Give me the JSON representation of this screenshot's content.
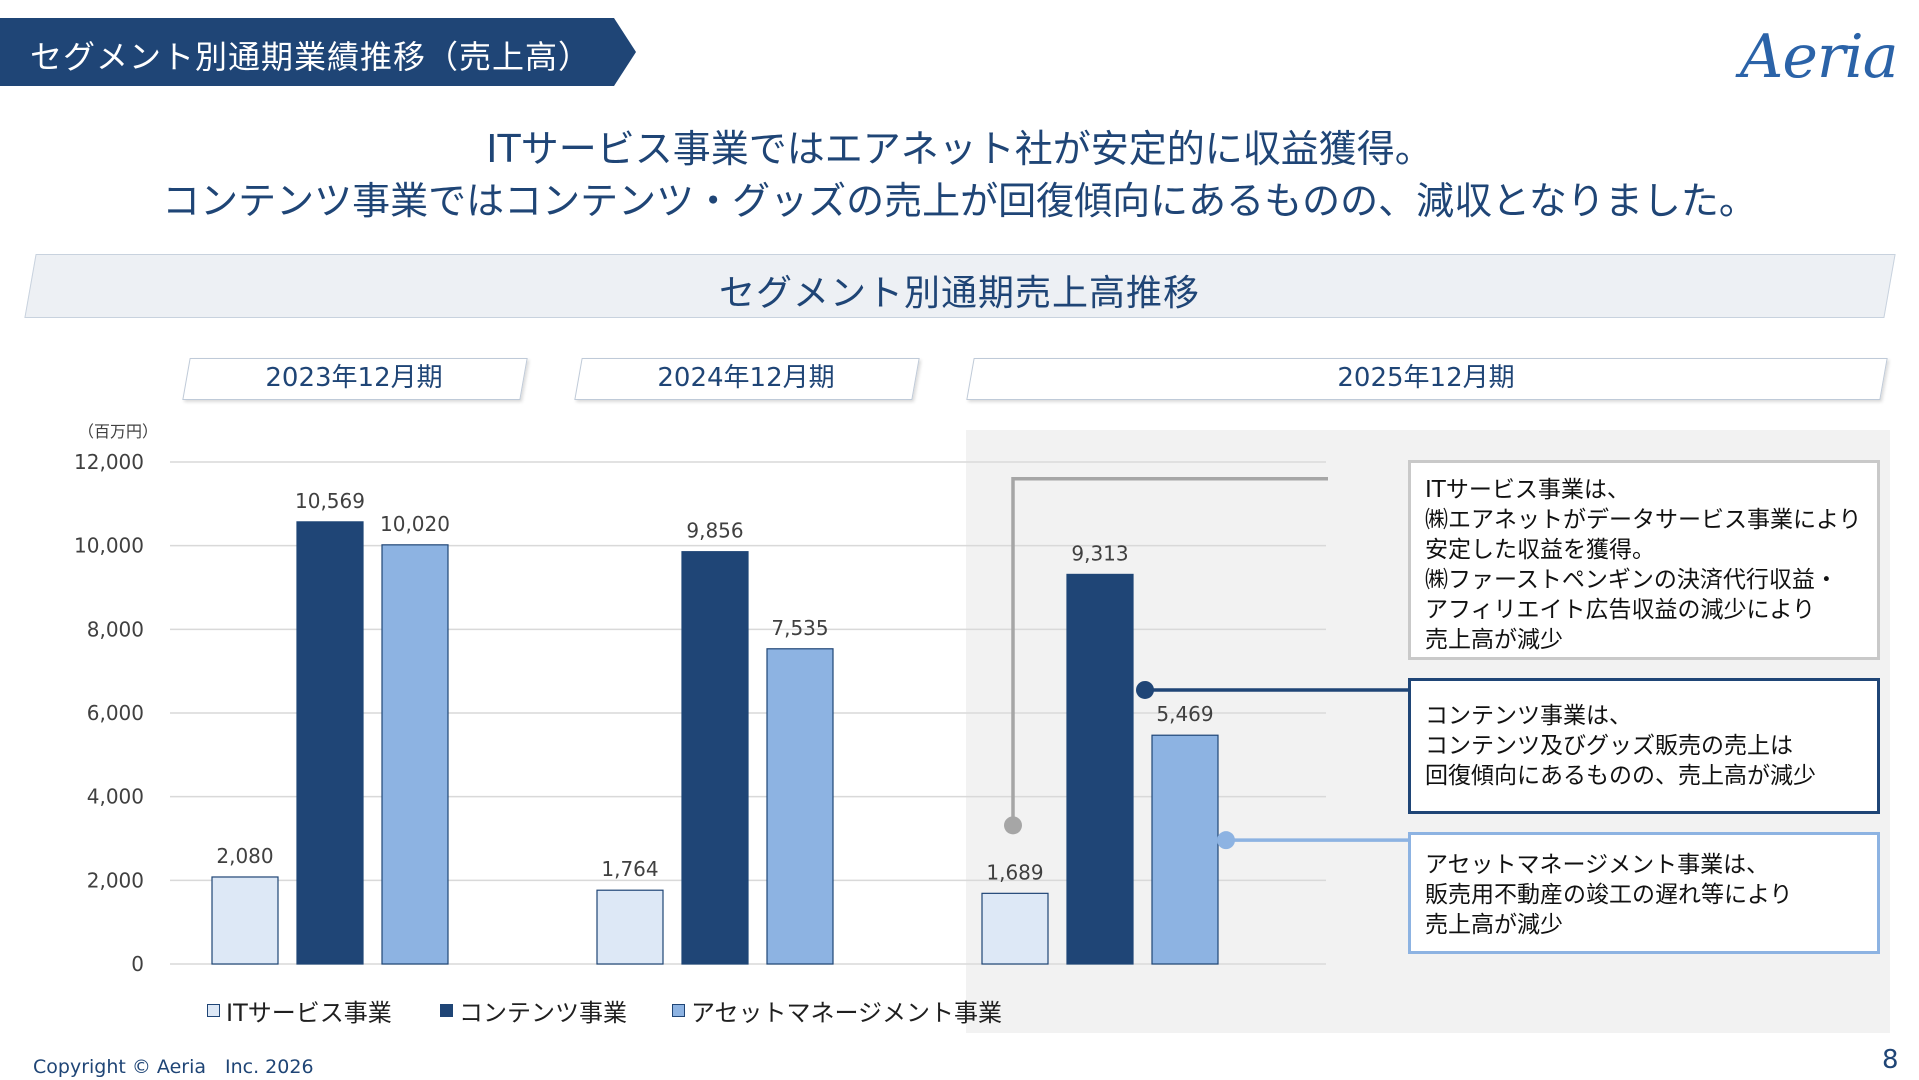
{
  "header": {
    "banner_title": "セグメント別通期業績推移（売上高）",
    "logo_text": "Aeria"
  },
  "headline": {
    "line1": "ITサービス事業ではエアネット社が安定的に収益獲得。",
    "line2": "コンテンツ事業ではコンテンツ・グッズの売上が回復傾向にあるものの、減収となりました。"
  },
  "panel_title": "セグメント別通期売上高推移",
  "periods": [
    "2023年12月期",
    "2024年12月期",
    "2025年12月期"
  ],
  "colors": {
    "it": "#dde8f6",
    "contents": "#1f4576",
    "asset": "#8db3e2",
    "navy": "#1f4576",
    "gray_line": "#a6a6a6",
    "light_blue_line": "#8db3e2"
  },
  "chart_data": {
    "type": "bar",
    "unit_label": "（百万円）",
    "categories": [
      "2023年12月期",
      "2024年12月期",
      "2025年12月期"
    ],
    "series": [
      {
        "name": "ITサービス事業",
        "values": [
          2080,
          1764,
          1689
        ],
        "labels": [
          "2,080",
          "1,764",
          "1,689"
        ]
      },
      {
        "name": "コンテンツ事業",
        "values": [
          10569,
          9856,
          9313
        ],
        "labels": [
          "10,569",
          "9,856",
          "9,313"
        ]
      },
      {
        "name": "アセットマネージメント事業",
        "values": [
          10020,
          7535,
          5469
        ],
        "labels": [
          "10,020",
          "7,535",
          "5,469"
        ]
      }
    ],
    "ylim": [
      0,
      12000
    ],
    "yticks": [
      0,
      2000,
      4000,
      6000,
      8000,
      10000,
      12000
    ],
    "ytick_labels": [
      "0",
      "2,000",
      "4,000",
      "6,000",
      "8,000",
      "10,000",
      "12,000"
    ],
    "grid": true,
    "legend": "bottom"
  },
  "callouts": {
    "it": {
      "lines": [
        "ITサービス事業は、",
        "㈱エアネットがデータサービス事業により",
        "安定した収益を獲得。",
        "㈱ファーストペンギンの決済代行収益・",
        "アフィリエイト広告収益の減少により",
        "売上高が減少"
      ]
    },
    "contents": {
      "lines": [
        "コンテンツ事業は、",
        "コンテンツ及びグッズ販売の売上は",
        "回復傾向にあるものの、売上高が減少"
      ]
    },
    "asset": {
      "lines": [
        "アセットマネージメント事業は、",
        "販売用不動産の竣工の遅れ等により",
        "売上高が減少"
      ]
    }
  },
  "footer": {
    "copyright": "Copyright © Aeria　Inc. 2026",
    "page_number": "8"
  }
}
